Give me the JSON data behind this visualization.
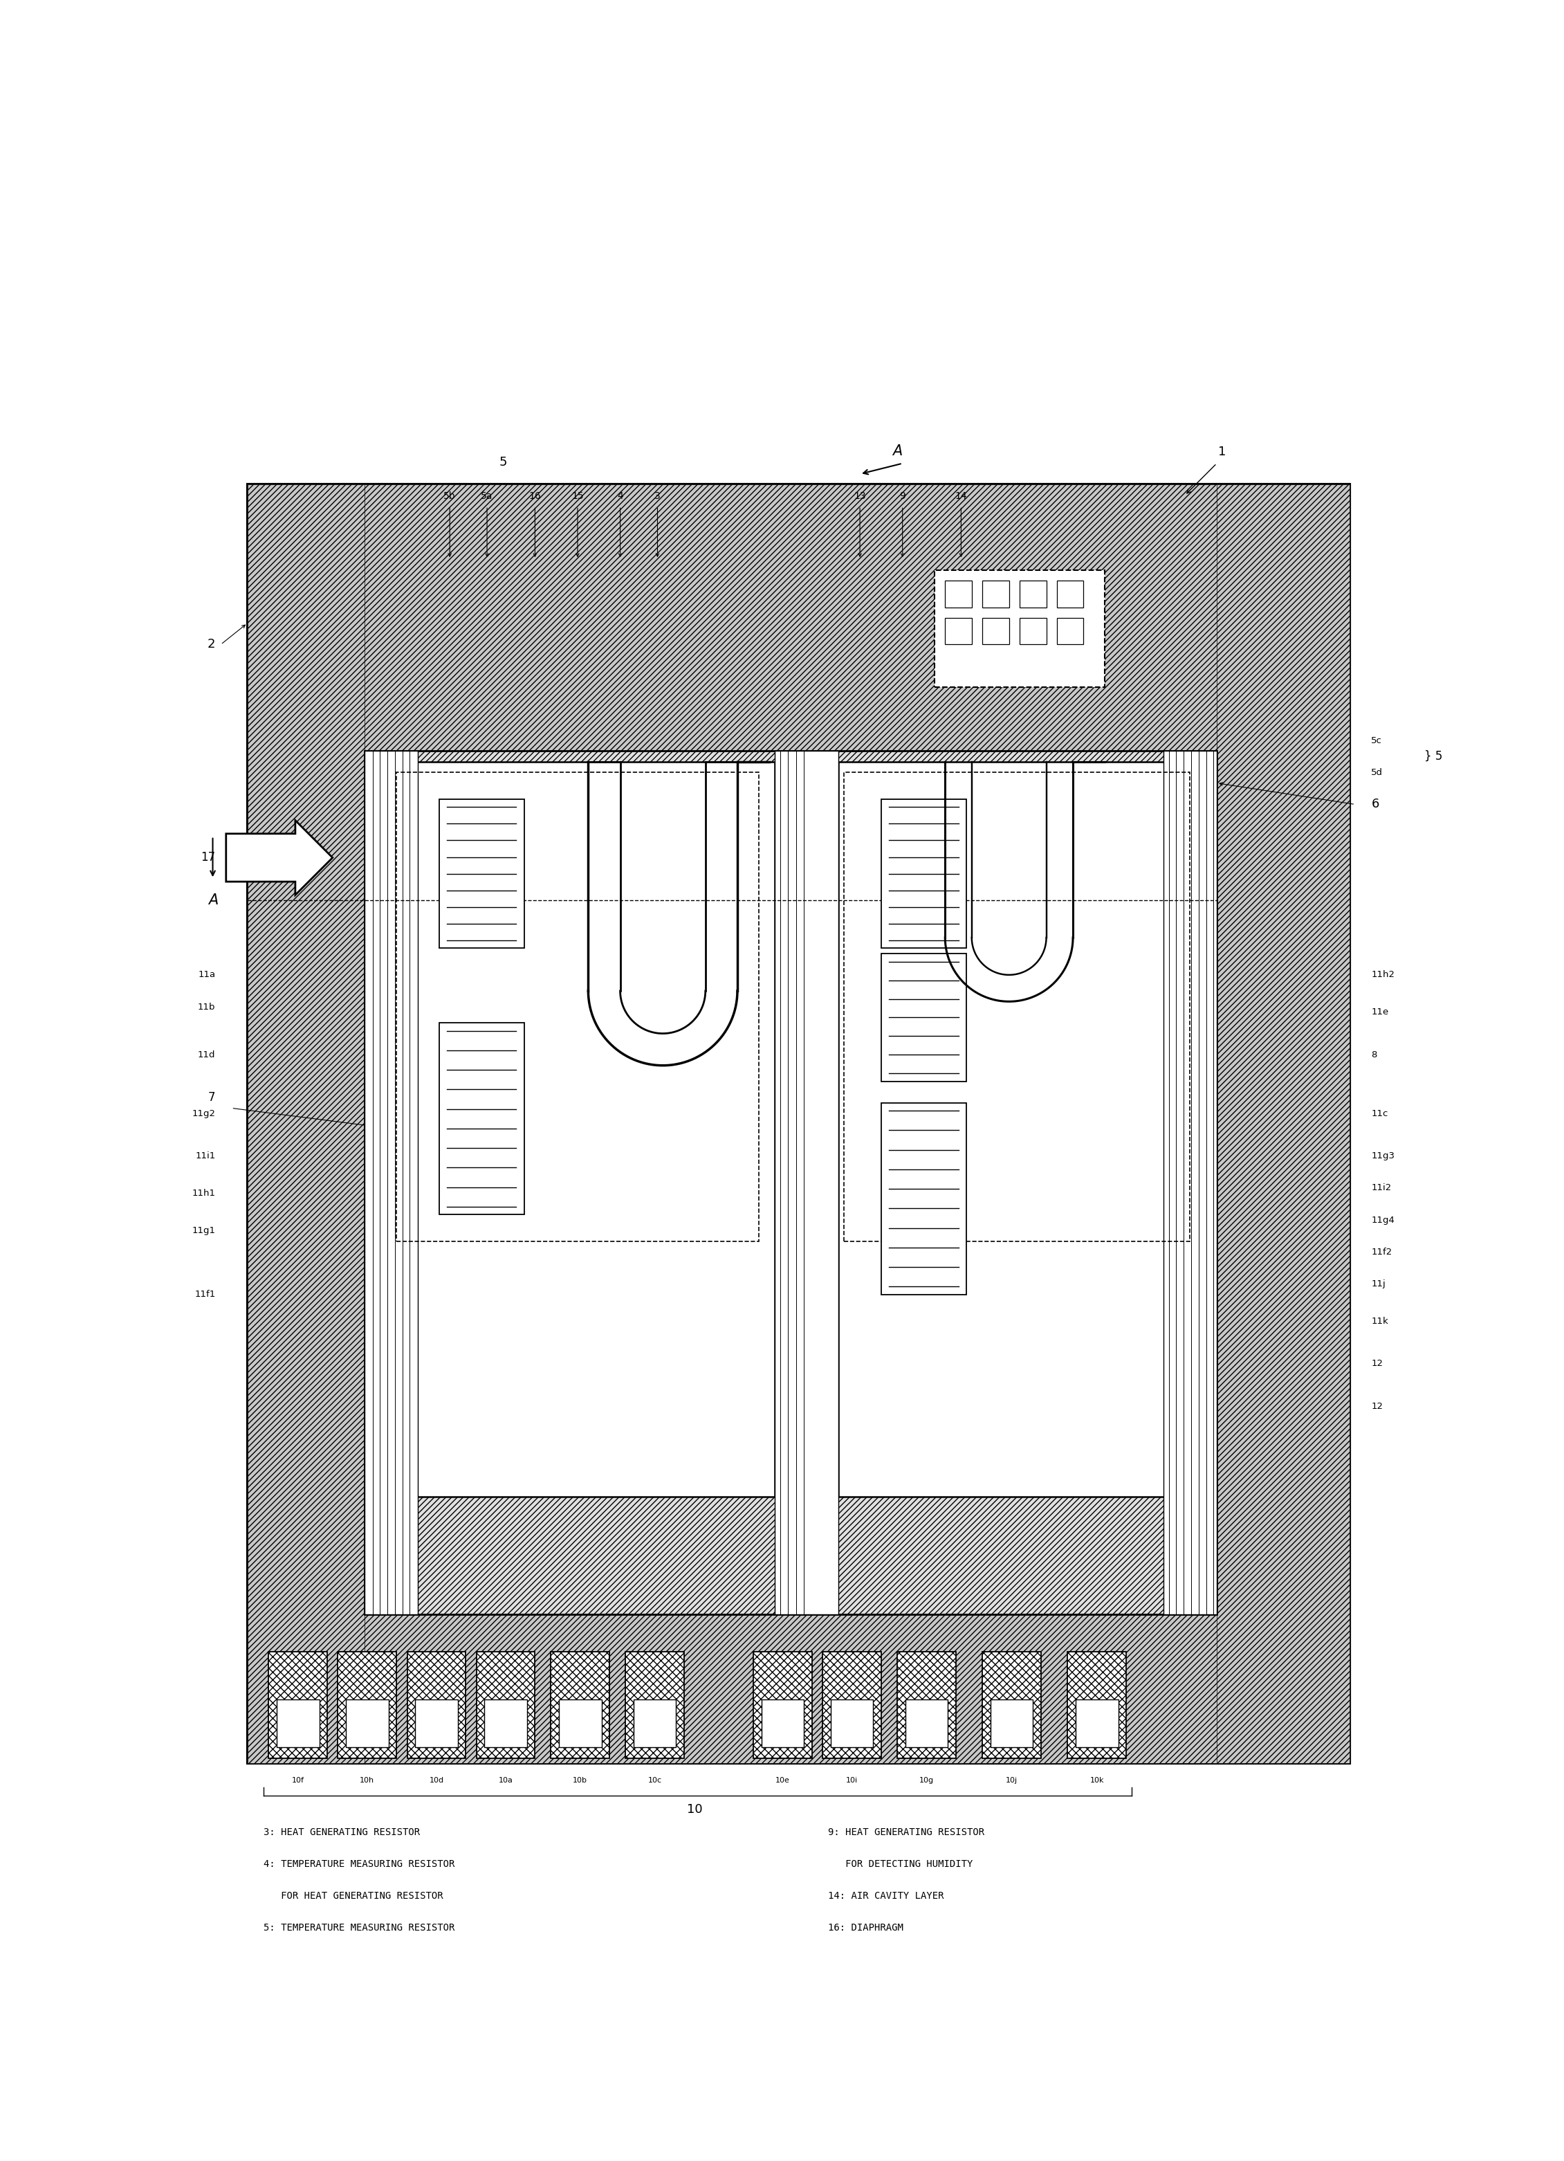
{
  "bg_color": "#ffffff",
  "fig_width": 22.61,
  "fig_height": 31.23,
  "legend_left": [
    "3: HEAT GENERATING RESISTOR",
    "4: TEMPERATURE MEASURING RESISTOR",
    "   FOR HEAT GENERATING RESISTOR",
    "5: TEMPERATURE MEASURING RESISTOR"
  ],
  "legend_right": [
    "9: HEAT GENERATING RESISTOR",
    "   FOR DETECTING HUMIDITY",
    "14: AIR CAVITY LAYER",
    "16: DIAPHRAGM"
  ],
  "bottom_pad_labels": [
    "10f",
    "10h",
    "10d",
    "10a",
    "10b",
    "10c",
    "10e",
    "10i",
    "10g",
    "10j",
    "10k"
  ],
  "left_labels_data": [
    [
      "11a",
      178
    ],
    [
      "11b",
      172
    ],
    [
      "11d",
      163
    ],
    [
      "11g2",
      152
    ],
    [
      "11i1",
      144
    ],
    [
      "11h1",
      137
    ],
    [
      "11g1",
      130
    ],
    [
      "11f1",
      118
    ]
  ],
  "right_labels_data": [
    [
      "11h2",
      178
    ],
    [
      "11e",
      171
    ],
    [
      "8",
      163
    ],
    [
      "11c",
      152
    ],
    [
      "11g3",
      144
    ],
    [
      "11i2",
      138
    ],
    [
      "11g4",
      132
    ],
    [
      "11f2",
      126
    ],
    [
      "11j",
      120
    ],
    [
      "11k",
      113
    ],
    [
      "12",
      105
    ],
    [
      "12",
      97
    ]
  ]
}
